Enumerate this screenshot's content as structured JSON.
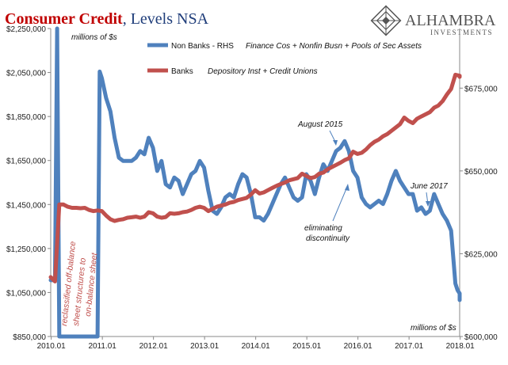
{
  "title": {
    "part1": "Consumer Credit",
    "part2": ", Levels NSA"
  },
  "logo": {
    "name": "ALHAMBRA",
    "sub": "INVESTMENTS"
  },
  "units": {
    "top_left": "millions of $s",
    "bottom_right": "millions of $s"
  },
  "colors": {
    "banks": "#c0504d",
    "nonbanks": "#4f81bd",
    "title_red": "#c00000",
    "title_blue": "#1f3d7a",
    "axis": "#888888"
  },
  "annotations": {
    "aug2015": "August 2015",
    "jun2017": "June 2017",
    "eliminating_1": "eliminating",
    "eliminating_2": "discontinuity",
    "reclass_1": "reclassified off-balance",
    "reclass_2": "sheet structures to",
    "reclass_3": "on-balance sheet"
  },
  "chart_data": {
    "type": "line",
    "x_ticks": [
      "2010.01",
      "2011.01",
      "2012.01",
      "2013.01",
      "2014.01",
      "2015.01",
      "2016.01",
      "2017.01",
      "2018.01"
    ],
    "x_range": [
      2010.0,
      2018.0
    ],
    "y_left": {
      "ticks": [
        "$850,000",
        "$1,050,000",
        "$1,250,000",
        "$1,450,000",
        "$1,650,000",
        "$1,850,000",
        "$2,050,000",
        "$2,250,000"
      ],
      "range": [
        850000,
        2250000
      ]
    },
    "y_right": {
      "ticks": [
        "$600,000",
        "$625,000",
        "$650,000",
        "$675,000"
      ],
      "range": [
        600000,
        693000
      ]
    },
    "series": [
      {
        "name": "Non Banks - RHS",
        "desc": "Finance Cos + Nonfin Busn + Pools of Sec Assets",
        "axis": "right",
        "points": [
          [
            2010.0,
            617000
          ],
          [
            2010.083,
            617000
          ],
          [
            2010.125,
            700000
          ],
          [
            2010.167,
            600000
          ],
          [
            2010.917,
            600000
          ],
          [
            2010.958,
            680000
          ],
          [
            2011.0,
            678000
          ],
          [
            2011.083,
            672000
          ],
          [
            2011.167,
            668000
          ],
          [
            2011.25,
            660000
          ],
          [
            2011.333,
            654000
          ],
          [
            2011.417,
            653000
          ],
          [
            2011.5,
            653000
          ],
          [
            2011.583,
            653000
          ],
          [
            2011.667,
            654000
          ],
          [
            2011.75,
            656000
          ],
          [
            2011.833,
            655000
          ],
          [
            2011.917,
            660000
          ],
          [
            2012.0,
            657000
          ],
          [
            2012.083,
            650000
          ],
          [
            2012.167,
            653000
          ],
          [
            2012.25,
            646000
          ],
          [
            2012.333,
            645000
          ],
          [
            2012.417,
            648000
          ],
          [
            2012.5,
            647000
          ],
          [
            2012.583,
            643000
          ],
          [
            2012.667,
            646000
          ],
          [
            2012.75,
            649000
          ],
          [
            2012.833,
            650000
          ],
          [
            2012.917,
            653000
          ],
          [
            2013.0,
            651000
          ],
          [
            2013.083,
            644000
          ],
          [
            2013.167,
            638000
          ],
          [
            2013.25,
            637000
          ],
          [
            2013.333,
            639000
          ],
          [
            2013.417,
            642000
          ],
          [
            2013.5,
            643000
          ],
          [
            2013.583,
            642000
          ],
          [
            2013.667,
            646000
          ],
          [
            2013.75,
            649000
          ],
          [
            2013.833,
            648000
          ],
          [
            2013.917,
            643000
          ],
          [
            2014.0,
            636000
          ],
          [
            2014.083,
            636000
          ],
          [
            2014.167,
            635000
          ],
          [
            2014.25,
            637000
          ],
          [
            2014.333,
            640000
          ],
          [
            2014.417,
            643000
          ],
          [
            2014.5,
            646000
          ],
          [
            2014.583,
            648000
          ],
          [
            2014.667,
            645000
          ],
          [
            2014.75,
            642000
          ],
          [
            2014.833,
            641000
          ],
          [
            2014.917,
            642000
          ],
          [
            2015.0,
            649000
          ],
          [
            2015.083,
            647000
          ],
          [
            2015.167,
            643000
          ],
          [
            2015.25,
            648000
          ],
          [
            2015.333,
            652000
          ],
          [
            2015.417,
            650000
          ],
          [
            2015.5,
            653000
          ],
          [
            2015.583,
            656000
          ],
          [
            2015.667,
            657000
          ],
          [
            2015.75,
            659000
          ],
          [
            2015.833,
            656000
          ],
          [
            2015.917,
            650000
          ],
          [
            2016.0,
            648000
          ],
          [
            2016.083,
            642000
          ],
          [
            2016.167,
            640000
          ],
          [
            2016.25,
            639000
          ],
          [
            2016.333,
            640000
          ],
          [
            2016.417,
            641000
          ],
          [
            2016.5,
            640000
          ],
          [
            2016.583,
            643000
          ],
          [
            2016.667,
            647000
          ],
          [
            2016.75,
            650000
          ],
          [
            2016.833,
            647000
          ],
          [
            2016.917,
            645000
          ],
          [
            2017.0,
            643000
          ],
          [
            2017.083,
            643000
          ],
          [
            2017.167,
            638000
          ],
          [
            2017.25,
            639000
          ],
          [
            2017.333,
            637000
          ],
          [
            2017.417,
            638000
          ],
          [
            2017.5,
            643000
          ],
          [
            2017.583,
            640000
          ],
          [
            2017.667,
            637000
          ],
          [
            2017.75,
            635000
          ],
          [
            2017.833,
            632000
          ],
          [
            2017.917,
            616000
          ],
          [
            2017.958,
            614000
          ],
          [
            2018.0,
            613000
          ],
          [
            2018.083,
            611000
          ]
        ]
      },
      {
        "name": "Banks",
        "desc": "Depository Inst + Credit Unions",
        "axis": "left",
        "points": [
          [
            2010.0,
            1120000
          ],
          [
            2010.083,
            1100000
          ],
          [
            2010.167,
            1450000
          ],
          [
            2010.25,
            1450000
          ],
          [
            2010.333,
            1440000
          ],
          [
            2010.417,
            1435000
          ],
          [
            2010.5,
            1435000
          ],
          [
            2010.583,
            1433000
          ],
          [
            2010.667,
            1435000
          ],
          [
            2010.75,
            1425000
          ],
          [
            2010.833,
            1420000
          ],
          [
            2010.917,
            1423000
          ],
          [
            2011.0,
            1420000
          ],
          [
            2011.083,
            1400000
          ],
          [
            2011.167,
            1383000
          ],
          [
            2011.25,
            1375000
          ],
          [
            2011.333,
            1380000
          ],
          [
            2011.417,
            1383000
          ],
          [
            2011.5,
            1390000
          ],
          [
            2011.583,
            1392000
          ],
          [
            2011.667,
            1395000
          ],
          [
            2011.75,
            1390000
          ],
          [
            2011.833,
            1395000
          ],
          [
            2011.917,
            1415000
          ],
          [
            2012.0,
            1410000
          ],
          [
            2012.083,
            1395000
          ],
          [
            2012.167,
            1390000
          ],
          [
            2012.25,
            1393000
          ],
          [
            2012.333,
            1410000
          ],
          [
            2012.417,
            1408000
          ],
          [
            2012.5,
            1410000
          ],
          [
            2012.583,
            1415000
          ],
          [
            2012.667,
            1418000
          ],
          [
            2012.75,
            1425000
          ],
          [
            2012.833,
            1435000
          ],
          [
            2012.917,
            1440000
          ],
          [
            2013.0,
            1435000
          ],
          [
            2013.083,
            1420000
          ],
          [
            2013.167,
            1430000
          ],
          [
            2013.25,
            1440000
          ],
          [
            2013.333,
            1445000
          ],
          [
            2013.417,
            1450000
          ],
          [
            2013.5,
            1458000
          ],
          [
            2013.583,
            1462000
          ],
          [
            2013.667,
            1470000
          ],
          [
            2013.75,
            1475000
          ],
          [
            2013.833,
            1480000
          ],
          [
            2013.917,
            1495000
          ],
          [
            2014.0,
            1515000
          ],
          [
            2014.083,
            1500000
          ],
          [
            2014.167,
            1505000
          ],
          [
            2014.25,
            1515000
          ],
          [
            2014.333,
            1525000
          ],
          [
            2014.417,
            1535000
          ],
          [
            2014.5,
            1543000
          ],
          [
            2014.583,
            1550000
          ],
          [
            2014.667,
            1560000
          ],
          [
            2014.75,
            1565000
          ],
          [
            2014.833,
            1570000
          ],
          [
            2014.917,
            1590000
          ],
          [
            2015.0,
            1580000
          ],
          [
            2015.083,
            1570000
          ],
          [
            2015.167,
            1575000
          ],
          [
            2015.25,
            1590000
          ],
          [
            2015.333,
            1595000
          ],
          [
            2015.417,
            1610000
          ],
          [
            2015.5,
            1620000
          ],
          [
            2015.583,
            1630000
          ],
          [
            2015.667,
            1640000
          ],
          [
            2015.75,
            1652000
          ],
          [
            2015.833,
            1660000
          ],
          [
            2015.917,
            1690000
          ],
          [
            2016.0,
            1680000
          ],
          [
            2016.083,
            1685000
          ],
          [
            2016.167,
            1700000
          ],
          [
            2016.25,
            1720000
          ],
          [
            2016.333,
            1735000
          ],
          [
            2016.417,
            1745000
          ],
          [
            2016.5,
            1760000
          ],
          [
            2016.583,
            1770000
          ],
          [
            2016.667,
            1785000
          ],
          [
            2016.75,
            1800000
          ],
          [
            2016.833,
            1815000
          ],
          [
            2016.917,
            1845000
          ],
          [
            2017.0,
            1830000
          ],
          [
            2017.083,
            1820000
          ],
          [
            2017.167,
            1840000
          ],
          [
            2017.25,
            1850000
          ],
          [
            2017.333,
            1860000
          ],
          [
            2017.417,
            1870000
          ],
          [
            2017.5,
            1890000
          ],
          [
            2017.583,
            1900000
          ],
          [
            2017.667,
            1920000
          ],
          [
            2017.75,
            1950000
          ],
          [
            2017.833,
            1975000
          ],
          [
            2017.917,
            2040000
          ],
          [
            2018.0,
            2035000
          ],
          [
            2018.083,
            2030000
          ]
        ]
      }
    ]
  }
}
